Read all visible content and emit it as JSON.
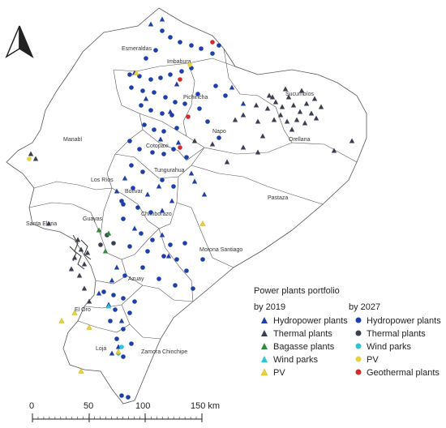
{
  "colors": {
    "hydro": "#1f3fa8",
    "thermal": "#3a3f4f",
    "bagasse": "#2e8b3a",
    "wind": "#2ec6d6",
    "pv": "#e6d23c",
    "geothermal": "#d42a2a",
    "border": "#555555"
  },
  "provinces": [
    {
      "name": "Esmeraldas"
    },
    {
      "name": "Imbabura"
    },
    {
      "name": "Sucumbíos"
    },
    {
      "name": "Pichincha"
    },
    {
      "name": "Manabí"
    },
    {
      "name": "Napo"
    },
    {
      "name": "Orellana"
    },
    {
      "name": "Cotopaxi"
    },
    {
      "name": "Los Ríos"
    },
    {
      "name": "Tungurahua"
    },
    {
      "name": "Bolívar"
    },
    {
      "name": "Pastaza"
    },
    {
      "name": "Santa Elena"
    },
    {
      "name": "Guayas"
    },
    {
      "name": "Chimborazo"
    },
    {
      "name": "Morona Santiago"
    },
    {
      "name": "Azuay"
    },
    {
      "name": "El Oro"
    },
    {
      "name": "Loja"
    },
    {
      "name": "Zamora Chinchipe"
    }
  ],
  "legend": {
    "title": "Power plants portfolio",
    "by2019": {
      "heading": "by 2019",
      "items": [
        {
          "label": "Hydropower plants",
          "marker": "triangle",
          "color": "hydro"
        },
        {
          "label": "Thermal plants",
          "marker": "triangle",
          "color": "thermal"
        },
        {
          "label": "Bagasse plants",
          "marker": "triangle",
          "color": "bagasse"
        },
        {
          "label": "Wind parks",
          "marker": "triangle",
          "color": "wind"
        },
        {
          "label": "PV",
          "marker": "triangle",
          "color": "pv"
        }
      ]
    },
    "by2027": {
      "heading": "by 2027",
      "items": [
        {
          "label": "Hydropower plants",
          "marker": "circle",
          "color": "hydro"
        },
        {
          "label": "Thermal plants",
          "marker": "circle",
          "color": "thermal"
        },
        {
          "label": "Wind parks",
          "marker": "circle",
          "color": "wind"
        },
        {
          "label": "PV",
          "marker": "circle",
          "color": "pv"
        },
        {
          "label": "Geothermal plants",
          "marker": "circle",
          "color": "geothermal"
        }
      ]
    }
  },
  "scale_bar": {
    "ticks": [
      "0",
      "50",
      "100",
      "150 km"
    ]
  },
  "north_arrow": {
    "icon": "north-arrow-icon"
  }
}
